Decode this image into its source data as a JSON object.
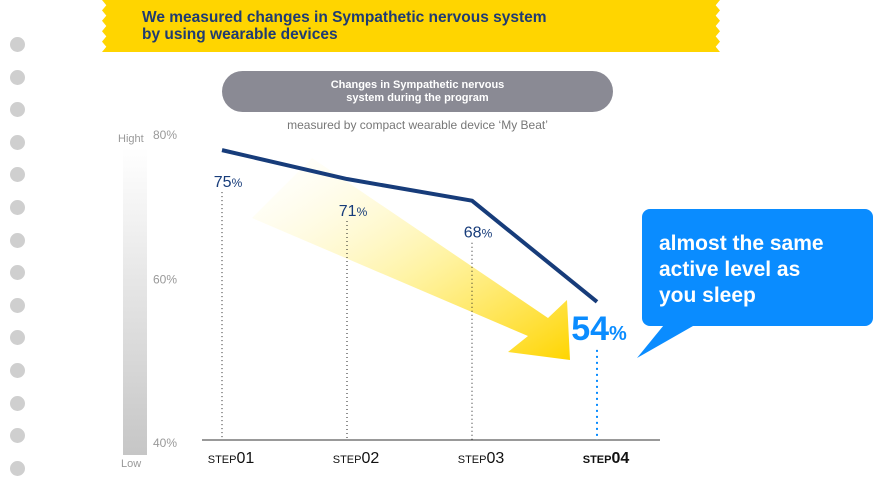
{
  "banner": {
    "line1": "We measured changes in Sympathetic nervous system",
    "line2": "by using wearable devices"
  },
  "pill": {
    "line1": "Changes in Sympathetic nervous",
    "line2": "system during the program"
  },
  "subtitle": "measured by compact wearable device ‘My Beat’",
  "gauge": {
    "high_label": "Hight",
    "low_label": "Low"
  },
  "callout": {
    "line1": "almost the same",
    "line2": "active level as",
    "line3": "you sleep"
  },
  "colors": {
    "banner": "#ffd500",
    "banner_text": "#1f3b73",
    "line": "#173c7a",
    "highlight": "#0a8cff",
    "arrow": "#ffd500",
    "pill": "#8a8a94"
  },
  "chart_data": {
    "type": "line",
    "categories": [
      "STEP01",
      "STEP02",
      "STEP03",
      "STEP04"
    ],
    "category_parts": [
      {
        "prefix": "STEP",
        "num": "01"
      },
      {
        "prefix": "STEP",
        "num": "02"
      },
      {
        "prefix": "STEP",
        "num": "03"
      },
      {
        "prefix": "STEP",
        "num": "04"
      }
    ],
    "values": [
      75,
      71,
      68,
      54
    ],
    "value_labels": [
      "75",
      "71",
      "68",
      "54"
    ],
    "unit": "%",
    "yticks": [
      {
        "value": 80,
        "label": "80%"
      },
      {
        "value": 60,
        "label": "60%"
      },
      {
        "value": 40,
        "label": "40%"
      }
    ],
    "ylim": [
      40,
      80
    ],
    "highlight_index": 3,
    "grid": false,
    "legend": "none"
  }
}
